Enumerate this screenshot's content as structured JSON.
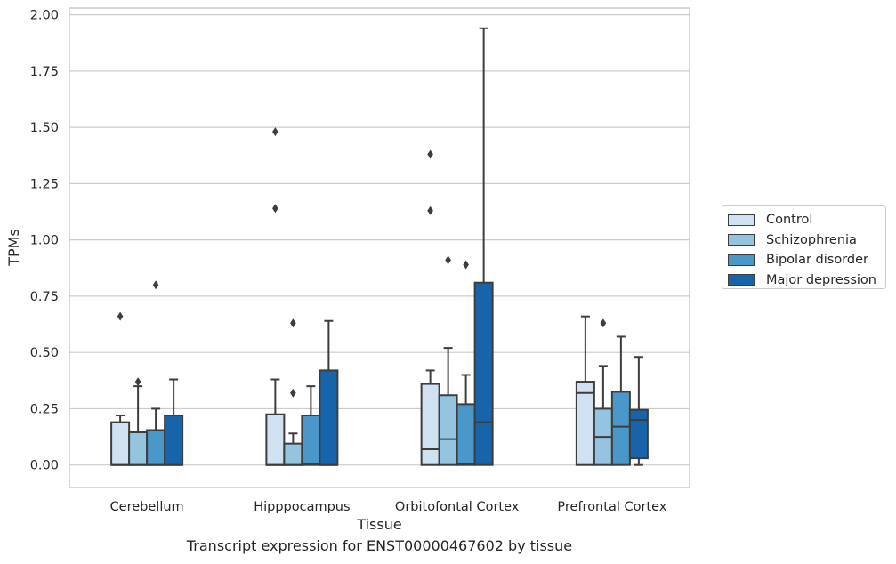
{
  "caption": "Transcript expression for ENST00000467602 by tissue",
  "legend": {
    "items": [
      {
        "label": "Control",
        "color": "#d0e1f2"
      },
      {
        "label": "Schizophrenia",
        "color": "#94c4df"
      },
      {
        "label": "Bipolar disorder",
        "color": "#4a98c9"
      },
      {
        "label": "Major depression",
        "color": "#1764ab"
      }
    ]
  },
  "chart_data": {
    "type": "boxplot",
    "xlabel": "Tissue",
    "ylabel": "TPMs",
    "ylim": [
      -0.1,
      2.03
    ],
    "yticks": [
      "0.00",
      "0.25",
      "0.50",
      "0.75",
      "1.00",
      "1.25",
      "1.50",
      "1.75",
      "2.00"
    ],
    "grid": true,
    "legend_position": "right",
    "categories": [
      "Cerebellum",
      "Hipppocampus",
      "Orbitofontal Cortex",
      "Prefrontal Cortex"
    ],
    "series": [
      {
        "name": "Control",
        "color": "#d0e1f2",
        "boxes": [
          {
            "whislo": 0.0,
            "q1": 0.0,
            "med": 0.0,
            "q3": 0.19,
            "whishi": 0.22,
            "fliers": [
              0.66
            ]
          },
          {
            "whislo": 0.0,
            "q1": 0.0,
            "med": 0.0,
            "q3": 0.225,
            "whishi": 0.38,
            "fliers": [
              1.48,
              1.14
            ]
          },
          {
            "whislo": 0.0,
            "q1": 0.0,
            "med": 0.07,
            "q3": 0.36,
            "whishi": 0.42,
            "fliers": [
              1.38,
              1.13
            ]
          },
          {
            "whislo": 0.0,
            "q1": 0.0,
            "med": 0.32,
            "q3": 0.37,
            "whishi": 0.66,
            "fliers": []
          }
        ]
      },
      {
        "name": "Schizophrenia",
        "color": "#94c4df",
        "boxes": [
          {
            "whislo": 0.0,
            "q1": 0.0,
            "med": 0.0,
            "q3": 0.145,
            "whishi": 0.35,
            "fliers": [
              0.37
            ]
          },
          {
            "whislo": 0.0,
            "q1": 0.0,
            "med": 0.0,
            "q3": 0.095,
            "whishi": 0.14,
            "fliers": [
              0.32,
              0.63
            ]
          },
          {
            "whislo": 0.0,
            "q1": 0.0,
            "med": 0.115,
            "q3": 0.31,
            "whishi": 0.52,
            "fliers": [
              0.91
            ]
          },
          {
            "whislo": 0.0,
            "q1": 0.0,
            "med": 0.125,
            "q3": 0.25,
            "whishi": 0.44,
            "fliers": [
              0.63
            ]
          }
        ]
      },
      {
        "name": "Bipolar disorder",
        "color": "#4a98c9",
        "boxes": [
          {
            "whislo": 0.0,
            "q1": 0.0,
            "med": 0.0,
            "q3": 0.155,
            "whishi": 0.25,
            "fliers": [
              0.8
            ]
          },
          {
            "whislo": 0.0,
            "q1": 0.0,
            "med": 0.005,
            "q3": 0.22,
            "whishi": 0.35,
            "fliers": []
          },
          {
            "whislo": 0.0,
            "q1": 0.0,
            "med": 0.005,
            "q3": 0.27,
            "whishi": 0.4,
            "fliers": [
              0.89
            ]
          },
          {
            "whislo": 0.0,
            "q1": 0.0,
            "med": 0.17,
            "q3": 0.325,
            "whishi": 0.57,
            "fliers": []
          }
        ]
      },
      {
        "name": "Major depression",
        "color": "#1764ab",
        "boxes": [
          {
            "whislo": 0.0,
            "q1": 0.0,
            "med": 0.0,
            "q3": 0.22,
            "whishi": 0.38,
            "fliers": []
          },
          {
            "whislo": 0.0,
            "q1": 0.0,
            "med": 0.0,
            "q3": 0.42,
            "whishi": 0.64,
            "fliers": []
          },
          {
            "whislo": 0.0,
            "q1": 0.0,
            "med": 0.19,
            "q3": 0.81,
            "whishi": 1.94,
            "fliers": []
          },
          {
            "whislo": 0.0,
            "q1": 0.03,
            "med": 0.2,
            "q3": 0.245,
            "whishi": 0.48,
            "fliers": []
          }
        ]
      }
    ]
  }
}
